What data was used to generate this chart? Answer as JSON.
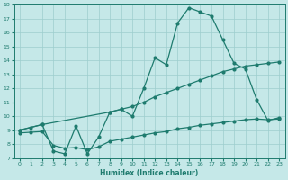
{
  "xlabel": "Humidex (Indice chaleur)",
  "xlim": [
    -0.5,
    23.5
  ],
  "ylim": [
    7,
    18
  ],
  "xticks": [
    0,
    1,
    2,
    3,
    4,
    5,
    6,
    7,
    8,
    9,
    10,
    11,
    12,
    13,
    14,
    15,
    16,
    17,
    18,
    19,
    20,
    21,
    22,
    23
  ],
  "yticks": [
    7,
    8,
    9,
    10,
    11,
    12,
    13,
    14,
    15,
    16,
    17,
    18
  ],
  "bg_color": "#c5e8e8",
  "line_color": "#1e7b6e",
  "grid_color": "#9dcece",
  "line1_x": [
    0,
    1,
    2,
    3,
    4,
    5,
    6,
    7,
    8,
    9,
    10,
    11,
    12,
    13,
    14,
    15,
    16,
    17,
    18,
    19,
    20,
    21,
    22,
    23
  ],
  "line1_y": [
    9.0,
    9.2,
    9.4,
    7.5,
    7.3,
    9.3,
    7.3,
    8.5,
    10.3,
    10.5,
    10.0,
    12.0,
    14.2,
    13.7,
    16.7,
    17.8,
    17.5,
    17.2,
    15.5,
    13.8,
    13.4,
    11.2,
    9.7,
    9.9
  ],
  "line2_x": [
    0,
    2,
    8,
    9,
    10,
    11,
    12,
    13,
    14,
    15,
    16,
    17,
    18,
    19,
    20,
    21,
    22,
    23
  ],
  "line2_y": [
    9.0,
    9.4,
    10.3,
    10.5,
    10.7,
    11.0,
    11.4,
    11.7,
    12.0,
    12.3,
    12.6,
    12.9,
    13.2,
    13.4,
    13.6,
    13.7,
    13.8,
    13.9
  ],
  "line3_x": [
    0,
    1,
    2,
    3,
    4,
    5,
    6,
    7,
    8,
    9,
    10,
    11,
    12,
    13,
    14,
    15,
    16,
    17,
    18,
    19,
    20,
    21,
    22,
    23
  ],
  "line3_y": [
    8.8,
    8.85,
    8.9,
    7.9,
    7.7,
    7.75,
    7.6,
    7.8,
    8.2,
    8.35,
    8.5,
    8.65,
    8.8,
    8.9,
    9.1,
    9.2,
    9.35,
    9.45,
    9.55,
    9.65,
    9.75,
    9.8,
    9.75,
    9.8
  ]
}
